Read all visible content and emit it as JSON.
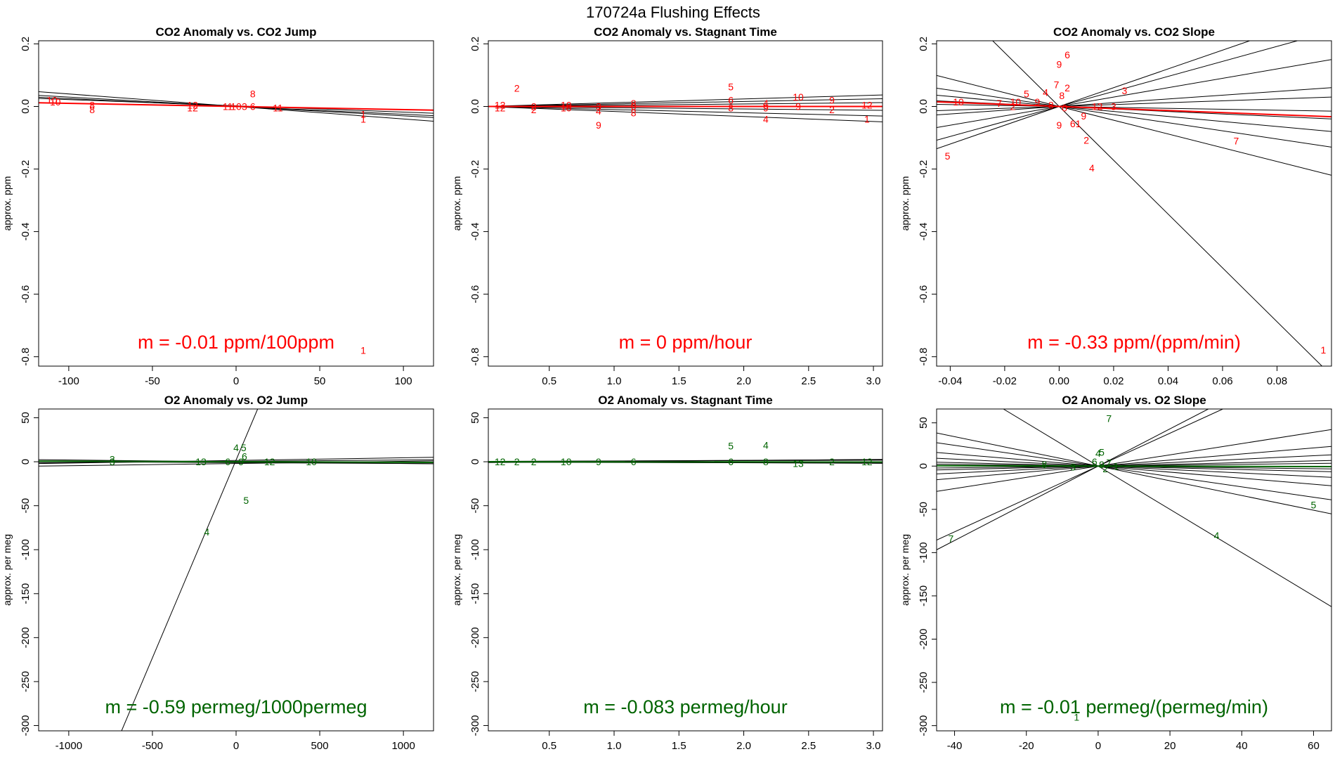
{
  "figure_title": "170724a   Flushing Effects",
  "colors": {
    "co2": "#ff0000",
    "o2": "#006400",
    "fit": "#000000"
  },
  "chart_data": [
    {
      "type": "scatter",
      "title": "CO2 Anomaly vs. CO2 Jump",
      "xlabel": "",
      "ylabel": "approx. ppm",
      "xlim": [
        -118,
        118
      ],
      "ylim": [
        -0.83,
        0.21
      ],
      "xticks": [
        -100,
        -50,
        0,
        50,
        100
      ],
      "xtick_labels": [
        "-100",
        "-50",
        "0",
        "50",
        "100"
      ],
      "yticks": [
        -0.8,
        -0.6,
        -0.4,
        -0.2,
        0.0,
        0.2
      ],
      "ytick_labels": [
        "-0.8",
        "-0.6",
        "-0.4",
        "-0.2",
        "0.0",
        "0.2"
      ],
      "color": "co2",
      "slope_text": "m = -0.01 ppm/100ppm",
      "fit_lines": [
        [
          0.0,
          -0.0004
        ],
        [
          0.0,
          -0.0003
        ],
        [
          0.0,
          -0.00025
        ],
        [
          0.002,
          -0.0002
        ],
        [
          0.0,
          -0.0001
        ]
      ],
      "main_line": [
        0.0,
        -0.0001
      ],
      "points": [
        {
          "l": "10",
          "x": -110,
          "y": 0.02
        },
        {
          "l": "10",
          "x": -108,
          "y": 0.015
        },
        {
          "l": "8",
          "x": -86,
          "y": 0.005
        },
        {
          "l": "8",
          "x": -86,
          "y": -0.01
        },
        {
          "l": "12",
          "x": -26,
          "y": 0.005
        },
        {
          "l": "12",
          "x": -26,
          "y": -0.005
        },
        {
          "l": "11",
          "x": -5,
          "y": 0.0
        },
        {
          "l": "10",
          "x": 0,
          "y": 0.0
        },
        {
          "l": "3",
          "x": 5,
          "y": 0.0
        },
        {
          "l": "8",
          "x": 10,
          "y": 0.04
        },
        {
          "l": "6",
          "x": 10,
          "y": 0.0
        },
        {
          "l": "11",
          "x": 25,
          "y": -0.005
        },
        {
          "l": "1",
          "x": 76,
          "y": -0.025
        },
        {
          "l": "1",
          "x": 76,
          "y": -0.04
        },
        {
          "l": "1",
          "x": 76,
          "y": -0.78
        }
      ]
    },
    {
      "type": "scatter",
      "title": "CO2 Anomaly vs. Stagnant Time",
      "xlabel": "",
      "ylabel": "approx. ppm",
      "xlim": [
        0.03,
        3.07
      ],
      "ylim": [
        -0.83,
        0.21
      ],
      "xticks": [
        0.5,
        1.0,
        1.5,
        2.0,
        2.5,
        3.0
      ],
      "xtick_labels": [
        "0.5",
        "1.0",
        "1.5",
        "2.0",
        "2.5",
        "3.0"
      ],
      "yticks": [
        -0.8,
        -0.6,
        -0.4,
        -0.2,
        0.0,
        0.2
      ],
      "ytick_labels": [
        "-0.8",
        "-0.6",
        "-0.4",
        "-0.2",
        "0.0",
        "0.2"
      ],
      "color": "co2",
      "slope_text": "m = 0 ppm/hour",
      "fit_lines": [
        [
          0.0,
          0.012
        ],
        [
          0.0,
          0.008
        ],
        [
          0.0,
          0.004
        ],
        [
          0.0,
          -0.004
        ],
        [
          0.0,
          -0.01
        ],
        [
          0.0,
          -0.016
        ]
      ],
      "main_line": [
        0.0,
        0.0
      ],
      "points": [
        {
          "l": "12",
          "x": 0.12,
          "y": 0.005
        },
        {
          "l": "12",
          "x": 0.12,
          "y": -0.005
        },
        {
          "l": "2",
          "x": 0.25,
          "y": 0.058
        },
        {
          "l": "2",
          "x": 0.38,
          "y": 0.0
        },
        {
          "l": "2",
          "x": 0.38,
          "y": -0.01
        },
        {
          "l": "10",
          "x": 0.63,
          "y": 0.005
        },
        {
          "l": "10",
          "x": 0.63,
          "y": -0.005
        },
        {
          "l": "3",
          "x": 0.88,
          "y": 0.0
        },
        {
          "l": "4",
          "x": 0.88,
          "y": -0.015
        },
        {
          "l": "9",
          "x": 0.88,
          "y": -0.06
        },
        {
          "l": "8",
          "x": 1.15,
          "y": 0.01
        },
        {
          "l": "6",
          "x": 1.15,
          "y": 0.0
        },
        {
          "l": "8",
          "x": 1.15,
          "y": -0.02
        },
        {
          "l": "5",
          "x": 1.9,
          "y": 0.063
        },
        {
          "l": "6",
          "x": 1.9,
          "y": 0.02
        },
        {
          "l": "8",
          "x": 1.9,
          "y": -0.005
        },
        {
          "l": "4",
          "x": 2.17,
          "y": 0.01
        },
        {
          "l": "9",
          "x": 2.17,
          "y": -0.005
        },
        {
          "l": "4",
          "x": 2.17,
          "y": -0.04
        },
        {
          "l": "10",
          "x": 2.42,
          "y": 0.03
        },
        {
          "l": "9",
          "x": 2.42,
          "y": 0.0
        },
        {
          "l": "9",
          "x": 2.68,
          "y": 0.02
        },
        {
          "l": "2",
          "x": 2.68,
          "y": -0.01
        },
        {
          "l": "12",
          "x": 2.95,
          "y": 0.005
        },
        {
          "l": "1",
          "x": 2.95,
          "y": -0.04
        }
      ]
    },
    {
      "type": "scatter",
      "title": "CO2 Anomaly vs. CO2 Slope",
      "xlabel": "",
      "ylabel": "approx. ppm",
      "xlim": [
        -0.045,
        0.1
      ],
      "ylim": [
        -0.83,
        0.21
      ],
      "xticks": [
        -0.04,
        -0.02,
        0.0,
        0.02,
        0.04,
        0.06,
        0.08
      ],
      "xtick_labels": [
        "-0.04",
        "-0.02",
        "0.00",
        "0.02",
        "0.04",
        "0.06",
        "0.08"
      ],
      "yticks": [
        -0.8,
        -0.6,
        -0.4,
        -0.2,
        0.0,
        0.2
      ],
      "ytick_labels": [
        "-0.8",
        "-0.6",
        "-0.4",
        "-0.2",
        "0.0",
        "0.2"
      ],
      "color": "co2",
      "slope_text": "m = -0.33 ppm/(ppm/min)",
      "fit_lines": [
        [
          0.0,
          -8.6
        ],
        [
          0.0,
          3.0
        ],
        [
          0.0,
          -2.2
        ],
        [
          0.0,
          2.4
        ],
        [
          0.0,
          -1.3
        ],
        [
          0.0,
          1.5
        ],
        [
          0.0,
          -0.8
        ],
        [
          0.0,
          0.6
        ],
        [
          0.0,
          -0.4
        ],
        [
          0.0,
          0.3
        ],
        [
          0.0,
          -0.15
        ]
      ],
      "main_line": [
        0.0,
        -0.33
      ],
      "points": [
        {
          "l": "6",
          "x": 0.003,
          "y": 0.165
        },
        {
          "l": "9",
          "x": 0.0,
          "y": 0.135
        },
        {
          "l": "7",
          "x": -0.001,
          "y": 0.07
        },
        {
          "l": "2",
          "x": 0.003,
          "y": 0.06
        },
        {
          "l": "4",
          "x": -0.005,
          "y": 0.045
        },
        {
          "l": "5",
          "x": -0.012,
          "y": 0.04
        },
        {
          "l": "8",
          "x": 0.001,
          "y": 0.035
        },
        {
          "l": "3",
          "x": 0.024,
          "y": 0.05
        },
        {
          "l": "10",
          "x": -0.037,
          "y": 0.015
        },
        {
          "l": "7",
          "x": -0.022,
          "y": 0.01
        },
        {
          "l": "10",
          "x": -0.016,
          "y": 0.015
        },
        {
          "l": "9",
          "x": -0.008,
          "y": 0.015
        },
        {
          "l": "2",
          "x": -0.017,
          "y": 0.0
        },
        {
          "l": "8",
          "x": -0.003,
          "y": 0.005
        },
        {
          "l": "0",
          "x": 0.002,
          "y": -0.005
        },
        {
          "l": "12",
          "x": 0.014,
          "y": 0.0
        },
        {
          "l": "3",
          "x": 0.02,
          "y": 0.0
        },
        {
          "l": "9",
          "x": 0.009,
          "y": -0.03
        },
        {
          "l": "9",
          "x": 0.0,
          "y": -0.06
        },
        {
          "l": "61",
          "x": 0.006,
          "y": -0.055
        },
        {
          "l": "2",
          "x": 0.01,
          "y": -0.108
        },
        {
          "l": "4",
          "x": 0.012,
          "y": -0.197
        },
        {
          "l": "5",
          "x": -0.041,
          "y": -0.158
        },
        {
          "l": "7",
          "x": 0.065,
          "y": -0.11
        },
        {
          "l": "1",
          "x": 0.097,
          "y": -0.778
        }
      ]
    },
    {
      "type": "scatter",
      "title": "O2 Anomaly vs. O2 Jump",
      "xlabel": "",
      "ylabel": "approx. per meg",
      "xlim": [
        -1180,
        1180
      ],
      "ylim": [
        -306,
        60
      ],
      "xticks": [
        -1000,
        -500,
        0,
        500,
        1000
      ],
      "xtick_labels": [
        "-1000",
        "-500",
        "0",
        "500",
        "1000"
      ],
      "yticks": [
        -300,
        -250,
        -200,
        -150,
        -100,
        -50,
        0,
        50
      ],
      "ytick_labels": [
        "-300",
        "-250",
        "-200",
        "-150",
        "-100",
        "-50",
        "0",
        "50"
      ],
      "color": "o2",
      "slope_text": "m = -0.59 permeg/1000permeg",
      "fit_lines": [
        [
          2.0,
          0.45
        ],
        [
          -2.0,
          0.0025
        ],
        [
          0.0,
          -0.002
        ],
        [
          1.5,
          0.003
        ],
        [
          -1.0,
          -0.001
        ],
        [
          0.5,
          0.0015
        ]
      ],
      "main_line": [
        0.0,
        -0.00059
      ],
      "points": [
        {
          "l": "3",
          "x": -740,
          "y": 3
        },
        {
          "l": "3",
          "x": -740,
          "y": 0
        },
        {
          "l": "13",
          "x": -210,
          "y": 0
        },
        {
          "l": "6",
          "x": -50,
          "y": 0
        },
        {
          "l": "9",
          "x": 30,
          "y": 0
        },
        {
          "l": "4",
          "x": 0,
          "y": 16
        },
        {
          "l": "5",
          "x": 45,
          "y": 16
        },
        {
          "l": "6",
          "x": 50,
          "y": 6
        },
        {
          "l": "12",
          "x": 200,
          "y": 0
        },
        {
          "l": "10",
          "x": 450,
          "y": 0
        },
        {
          "l": "5",
          "x": 60,
          "y": -44
        },
        {
          "l": "4",
          "x": -175,
          "y": -80
        }
      ]
    },
    {
      "type": "scatter",
      "title": "O2 Anomaly vs. Stagnant Time",
      "xlabel": "",
      "ylabel": "approx. per meg",
      "xlim": [
        0.03,
        3.07
      ],
      "ylim": [
        -306,
        60
      ],
      "xticks": [
        0.5,
        1.0,
        1.5,
        2.0,
        2.5,
        3.0
      ],
      "xtick_labels": [
        "0.5",
        "1.0",
        "1.5",
        "2.0",
        "2.5",
        "3.0"
      ],
      "yticks": [
        -300,
        -250,
        -200,
        -150,
        -100,
        -50,
        0,
        50
      ],
      "ytick_labels": [
        "-300",
        "-250",
        "-200",
        "-150",
        "-100",
        "-50",
        "0",
        "50"
      ],
      "color": "o2",
      "slope_text": "m = -0.083 permeg/hour",
      "fit_lines": [
        [
          -1.0,
          1.2
        ],
        [
          0.0,
          0.8
        ],
        [
          0.5,
          0.4
        ],
        [
          -0.5,
          -0.3
        ],
        [
          0.0,
          -0.6
        ]
      ],
      "main_line": [
        0.0,
        -0.083
      ],
      "points": [
        {
          "l": "12",
          "x": 0.12,
          "y": 0
        },
        {
          "l": "2",
          "x": 0.25,
          "y": 0
        },
        {
          "l": "2",
          "x": 0.38,
          "y": 0
        },
        {
          "l": "10",
          "x": 0.63,
          "y": 0
        },
        {
          "l": "9",
          "x": 0.88,
          "y": 0
        },
        {
          "l": "6",
          "x": 1.15,
          "y": 0
        },
        {
          "l": "5",
          "x": 1.9,
          "y": 18
        },
        {
          "l": "6",
          "x": 1.9,
          "y": 0
        },
        {
          "l": "4",
          "x": 2.17,
          "y": 19
        },
        {
          "l": "8",
          "x": 2.17,
          "y": 0
        },
        {
          "l": "13",
          "x": 2.42,
          "y": -2
        },
        {
          "l": "2",
          "x": 2.68,
          "y": 0
        },
        {
          "l": "12",
          "x": 2.95,
          "y": 0
        }
      ]
    },
    {
      "type": "scatter",
      "title": "O2 Anomaly vs. O2 Slope",
      "xlabel": "",
      "ylabel": "approx. per meg",
      "xlim": [
        -45,
        65
      ],
      "ylim": [
        -306,
        66
      ],
      "xticks": [
        -40,
        -20,
        0,
        20,
        40,
        60
      ],
      "xtick_labels": [
        "-40",
        "-20",
        "0",
        "20",
        "40",
        "60"
      ],
      "yticks": [
        -300,
        -250,
        -200,
        -150,
        -100,
        -50,
        0,
        50
      ],
      "ytick_labels": [
        "-300",
        "-250",
        "-200",
        "-150",
        "-100",
        "-50",
        "0",
        "50"
      ],
      "color": "o2",
      "slope_text": "m = -0.01 permeg/(permeg/min)",
      "fit_lines": [
        [
          0.0,
          2.15
        ],
        [
          0.0,
          -2.5
        ],
        [
          0.0,
          1.9
        ],
        [
          0.0,
          -0.85
        ],
        [
          0.0,
          0.65
        ],
        [
          0.0,
          -0.6
        ],
        [
          0.0,
          0.35
        ],
        [
          0.0,
          -0.35
        ],
        [
          0.0,
          0.2
        ],
        [
          0.0,
          -0.2
        ],
        [
          0.0,
          0.1
        ],
        [
          0.0,
          -0.1
        ],
        [
          0.0,
          0.05
        ],
        [
          0.0,
          -0.05
        ]
      ],
      "main_line": [
        0.0,
        -0.01
      ],
      "points": [
        {
          "l": "7",
          "x": 3,
          "y": 55
        },
        {
          "l": "4",
          "x": 0,
          "y": 15
        },
        {
          "l": "5",
          "x": 1,
          "y": 16
        },
        {
          "l": "8",
          "x": -15,
          "y": 2
        },
        {
          "l": "3",
          "x": -7,
          "y": -1
        },
        {
          "l": "6",
          "x": -1,
          "y": 5
        },
        {
          "l": "9",
          "x": 1,
          "y": 2
        },
        {
          "l": "7",
          "x": 3,
          "y": 4
        },
        {
          "l": "1",
          "x": 5,
          "y": 0
        },
        {
          "l": "2",
          "x": 2,
          "y": -3
        },
        {
          "l": "1",
          "x": -6,
          "y": -290
        },
        {
          "l": "7",
          "x": -41,
          "y": -84
        },
        {
          "l": "4",
          "x": 33,
          "y": -80
        },
        {
          "l": "5",
          "x": 60,
          "y": -45
        }
      ]
    }
  ]
}
